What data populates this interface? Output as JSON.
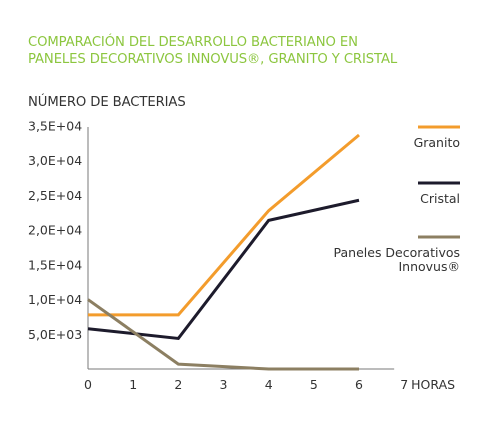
{
  "chart_data": {
    "type": "line",
    "title_lines": [
      "COMPARACIÓN DEL DESARROLLO BACTERIANO EN",
      "PANELES DECORATIVOS INNOVUS®, GRANITO Y CRISTAL"
    ],
    "ylabel": "NÚMERO DE BACTERIAS",
    "xlabel": "HORAS",
    "x_ticks": [
      0,
      1,
      2,
      3,
      4,
      5,
      6,
      7
    ],
    "xlim": [
      0,
      6
    ],
    "y_ticks": [
      5000,
      10000,
      15000,
      20000,
      25000,
      30000,
      35000
    ],
    "y_tick_labels": [
      "5,0E+03",
      "1,0E+04",
      "1,5E+04",
      "2,0E+04",
      "2,5E+04",
      "3,0E+04",
      "3,5E+04"
    ],
    "ylim": [
      0,
      36000
    ],
    "grid": false,
    "legend_position": "right",
    "series": [
      {
        "name": "Granito",
        "color": "#f39c2c",
        "x": [
          0,
          2,
          4,
          6
        ],
        "values": [
          7800,
          7800,
          22800,
          33700
        ]
      },
      {
        "name": "Cristal",
        "color": "#1d1b2c",
        "x": [
          0,
          2,
          4,
          6
        ],
        "values": [
          5800,
          4400,
          21400,
          24300
        ]
      },
      {
        "name": "Paneles Decorativos Innovus®",
        "legend_lines": [
          "Paneles Decorativos",
          "Innovus®"
        ],
        "color": "#8c7f62",
        "x": [
          0,
          2,
          4,
          6
        ],
        "values": [
          10000,
          700,
          0,
          0
        ]
      }
    ]
  }
}
